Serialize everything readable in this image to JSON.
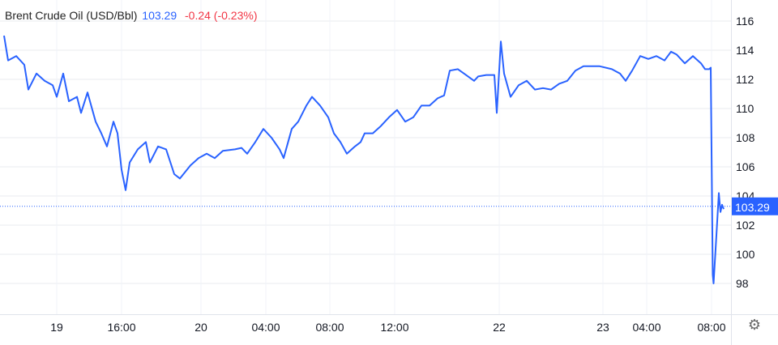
{
  "header": {
    "instrument": "Brent Crude Oil (USD/Bbl)",
    "price": "103.29",
    "change": "-0.24 (-0.23%)"
  },
  "colors": {
    "line": "#2962ff",
    "up": "#2962ff",
    "down": "#f23645",
    "grid": "#e8ebef"
  },
  "settings_icon": "gear-icon",
  "chart_data": {
    "type": "line",
    "title": "Brent Crude Oil (USD/Bbl)",
    "ylim": [
      96,
      117
    ],
    "y_ticks": [
      98,
      100,
      102,
      104,
      106,
      108,
      110,
      112,
      114,
      116
    ],
    "x_ticks": [
      {
        "label": "19",
        "at": 70
      },
      {
        "label": "16:00",
        "at": 150
      },
      {
        "label": "20",
        "at": 248
      },
      {
        "label": "04:00",
        "at": 328
      },
      {
        "label": "08:00",
        "at": 407
      },
      {
        "label": "12:00",
        "at": 487
      },
      {
        "label": "22",
        "at": 616
      },
      {
        "label": "23",
        "at": 744
      },
      {
        "label": "04:00",
        "at": 798
      },
      {
        "label": "08:00",
        "at": 878
      }
    ],
    "last_price": 103.29,
    "last_price_label": "103.29",
    "grid": true,
    "series": [
      {
        "points": [
          [
            5,
            115.0
          ],
          [
            10,
            113.3
          ],
          [
            20,
            113.6
          ],
          [
            30,
            113.0
          ],
          [
            35,
            111.3
          ],
          [
            45,
            112.4
          ],
          [
            55,
            111.9
          ],
          [
            65,
            111.6
          ],
          [
            70,
            110.8
          ],
          [
            78,
            112.4
          ],
          [
            85,
            110.5
          ],
          [
            95,
            110.8
          ],
          [
            100,
            109.7
          ],
          [
            108,
            111.1
          ],
          [
            118,
            109.1
          ],
          [
            125,
            108.3
          ],
          [
            132,
            107.4
          ],
          [
            140,
            109.1
          ],
          [
            145,
            108.3
          ],
          [
            150,
            105.8
          ],
          [
            155,
            104.4
          ],
          [
            160,
            106.3
          ],
          [
            170,
            107.2
          ],
          [
            180,
            107.7
          ],
          [
            185,
            106.3
          ],
          [
            195,
            107.4
          ],
          [
            205,
            107.2
          ],
          [
            215,
            105.5
          ],
          [
            222,
            105.2
          ],
          [
            235,
            106.1
          ],
          [
            245,
            106.6
          ],
          [
            255,
            106.9
          ],
          [
            265,
            106.6
          ],
          [
            275,
            107.1
          ],
          [
            290,
            107.2
          ],
          [
            298,
            107.3
          ],
          [
            305,
            106.9
          ],
          [
            315,
            107.7
          ],
          [
            325,
            108.6
          ],
          [
            335,
            108.0
          ],
          [
            345,
            107.2
          ],
          [
            350,
            106.6
          ],
          [
            360,
            108.6
          ],
          [
            368,
            109.1
          ],
          [
            378,
            110.2
          ],
          [
            385,
            110.8
          ],
          [
            395,
            110.2
          ],
          [
            405,
            109.4
          ],
          [
            412,
            108.3
          ],
          [
            420,
            107.7
          ],
          [
            428,
            106.9
          ],
          [
            438,
            107.4
          ],
          [
            445,
            107.7
          ],
          [
            450,
            108.3
          ],
          [
            460,
            108.3
          ],
          [
            470,
            108.8
          ],
          [
            480,
            109.4
          ],
          [
            490,
            109.9
          ],
          [
            500,
            109.1
          ],
          [
            510,
            109.4
          ],
          [
            520,
            110.2
          ],
          [
            530,
            110.2
          ],
          [
            540,
            110.7
          ],
          [
            548,
            110.9
          ],
          [
            555,
            112.6
          ],
          [
            565,
            112.7
          ],
          [
            575,
            112.3
          ],
          [
            585,
            111.9
          ],
          [
            590,
            112.2
          ],
          [
            600,
            112.3
          ],
          [
            610,
            112.3
          ],
          [
            613,
            109.7
          ],
          [
            618,
            114.6
          ],
          [
            622,
            112.4
          ],
          [
            630,
            110.8
          ],
          [
            640,
            111.6
          ],
          [
            650,
            111.9
          ],
          [
            660,
            111.3
          ],
          [
            670,
            111.4
          ],
          [
            680,
            111.3
          ],
          [
            690,
            111.7
          ],
          [
            700,
            111.9
          ],
          [
            710,
            112.6
          ],
          [
            720,
            112.9
          ],
          [
            730,
            112.9
          ],
          [
            740,
            112.9
          ],
          [
            755,
            112.7
          ],
          [
            765,
            112.4
          ],
          [
            772,
            111.9
          ],
          [
            780,
            112.6
          ],
          [
            790,
            113.6
          ],
          [
            800,
            113.4
          ],
          [
            810,
            113.6
          ],
          [
            820,
            113.3
          ],
          [
            828,
            113.9
          ],
          [
            835,
            113.7
          ],
          [
            845,
            113.1
          ],
          [
            855,
            113.6
          ],
          [
            865,
            113.1
          ],
          [
            870,
            112.7
          ],
          [
            875,
            112.7
          ],
          [
            877,
            112.8
          ],
          [
            879.5,
            98.6
          ],
          [
            880.5,
            98.0
          ],
          [
            884,
            101.3
          ],
          [
            887,
            104.2
          ],
          [
            889,
            102.9
          ],
          [
            891,
            103.4
          ],
          [
            893,
            103.1
          ]
        ]
      }
    ]
  }
}
